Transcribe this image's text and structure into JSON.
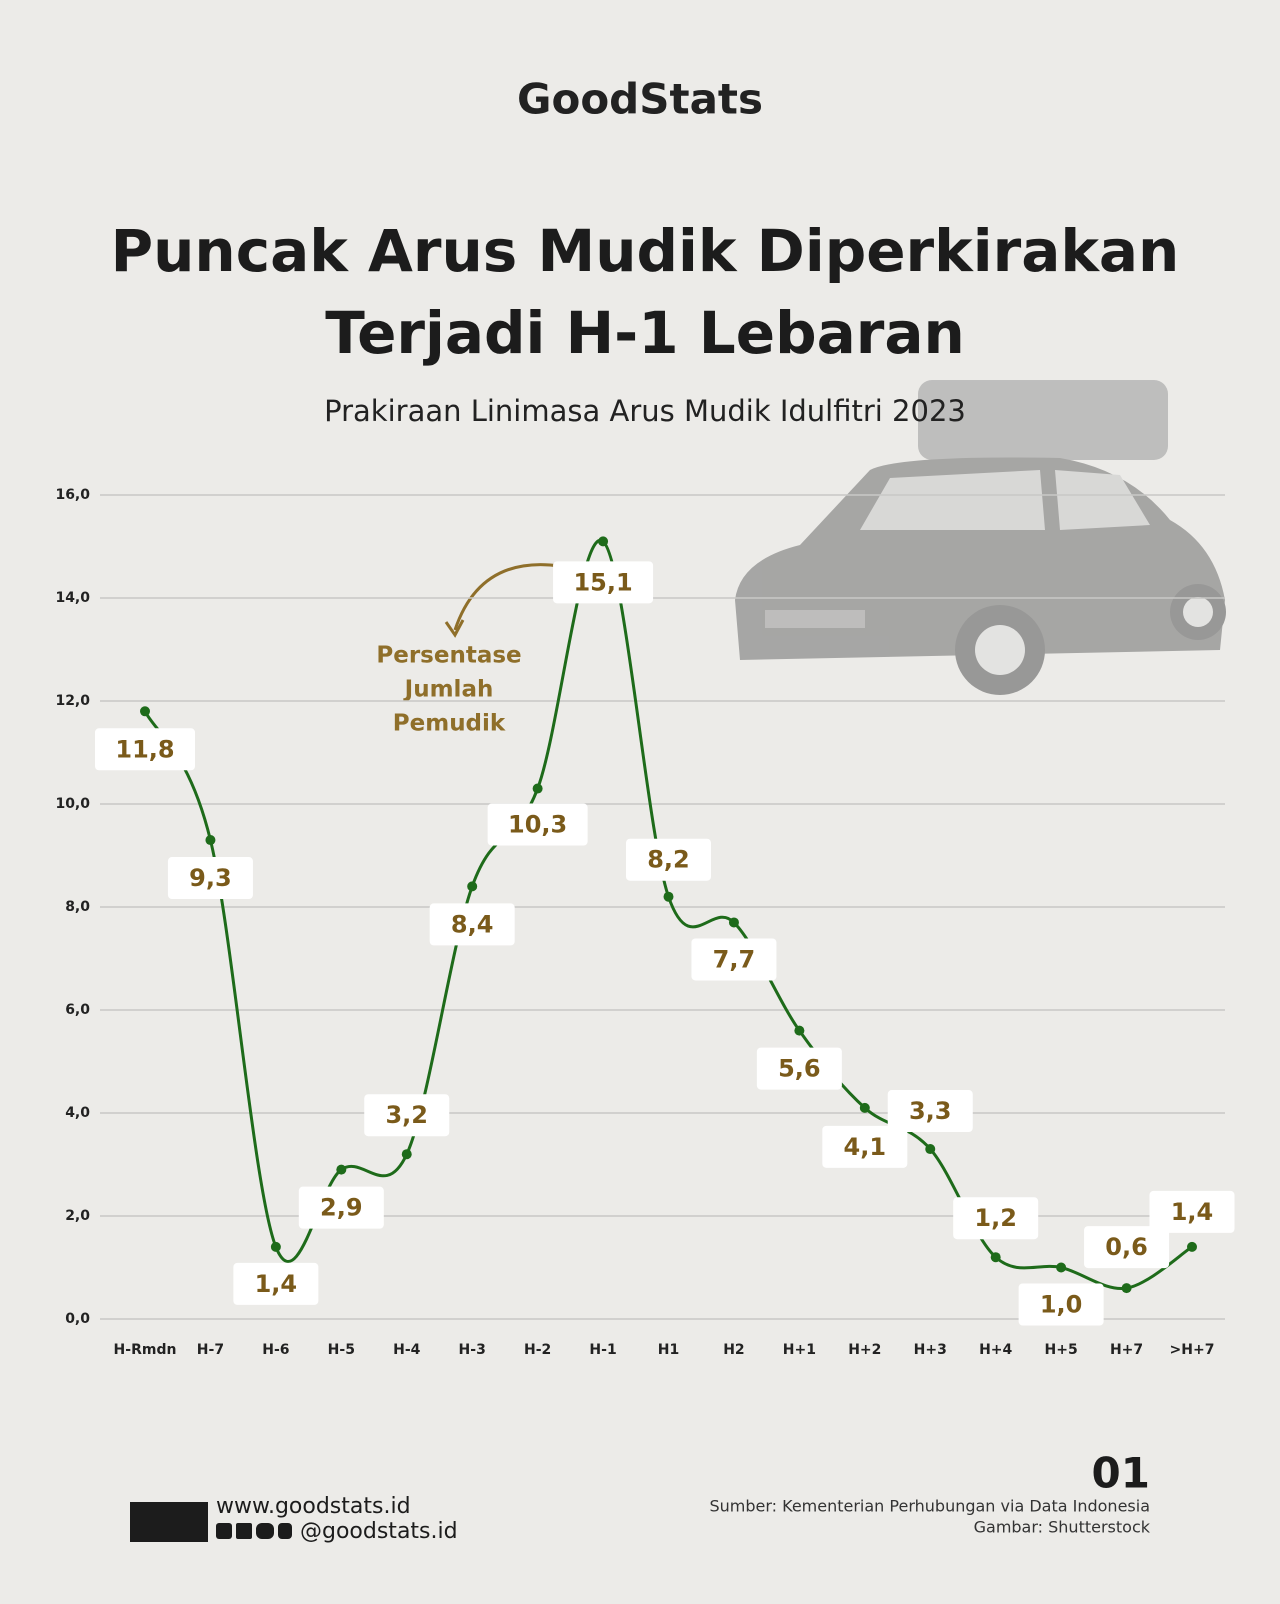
{
  "logo": "GoodStats",
  "chart_data": {
    "type": "line",
    "title": [
      "Puncak Arus Mudik Diperkirakan",
      "Terjadi H-1 Lebaran"
    ],
    "subtitle": "Prakiraan Linimasa Arus Mudik Idulfitri 2023",
    "annotation": [
      "Persentase",
      "Jumlah",
      "Pemudik"
    ],
    "categories": [
      "H-Rmdn",
      "H-7",
      "H-6",
      "H-5",
      "H-4",
      "H-3",
      "H-2",
      "H-1",
      "H1",
      "H2",
      "H+1",
      "H+2",
      "H+3",
      "H+4",
      "H+5",
      "H+7",
      ">H+7"
    ],
    "values": [
      11.8,
      9.3,
      1.4,
      2.9,
      3.2,
      8.4,
      10.3,
      15.1,
      8.2,
      7.7,
      5.6,
      4.1,
      3.3,
      1.2,
      1.0,
      0.6,
      1.4
    ],
    "value_labels": [
      "11,8",
      "9,3",
      "1,4",
      "2,9",
      "3,2",
      "8,4",
      "10,3",
      "15,1",
      "8,2",
      "7,7",
      "5,6",
      "4,1",
      "3,3",
      "1,2",
      "1,0",
      "0,6",
      "1,4"
    ],
    "color": "#1e6b1a",
    "ylim": [
      0,
      16
    ],
    "yticks": [
      {
        "value": 0,
        "label": "0,0"
      },
      {
        "value": 2,
        "label": "2,0"
      },
      {
        "value": 4,
        "label": "4,0"
      },
      {
        "value": 6,
        "label": "6,0"
      },
      {
        "value": 8,
        "label": "8,0"
      },
      {
        "value": 10,
        "label": "10,0"
      },
      {
        "value": 12,
        "label": "12,0"
      },
      {
        "value": 14,
        "label": "14,0"
      },
      {
        "value": 16,
        "label": "16,0"
      }
    ],
    "grid": true
  },
  "footer": {
    "page": "01",
    "website": "www.goodstats.id",
    "handle": "@goodstats.id",
    "source": "Sumber: Kementerian Perhubungan via Data Indonesia",
    "image_credit": "Gambar: Shutterstock"
  }
}
